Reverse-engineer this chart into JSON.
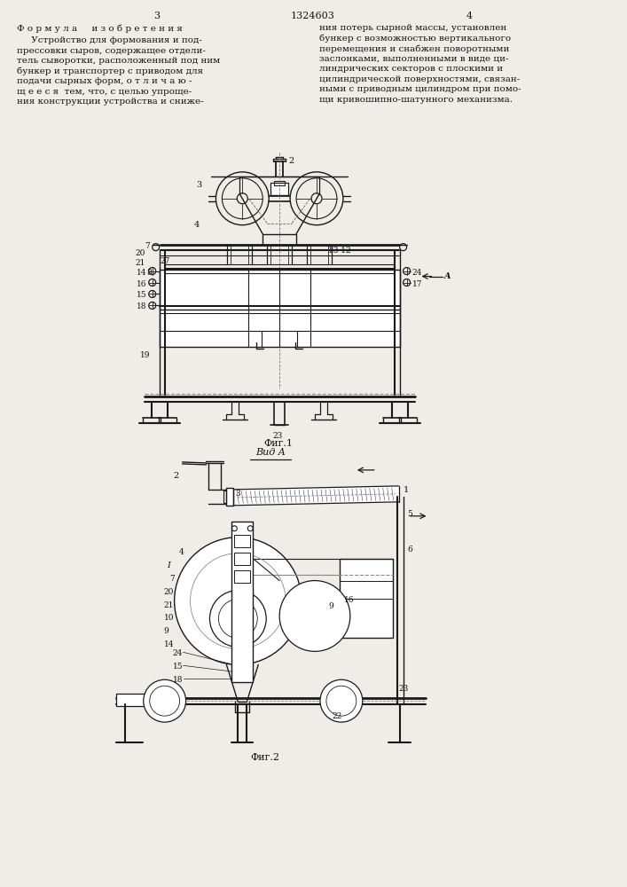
{
  "page_width": 7.07,
  "page_height": 10.0,
  "bg_color": "#f0ede8",
  "line_color": "#1a1a1a",
  "text_color": "#111111",
  "page_number_left": "3",
  "page_number_center": "1324603",
  "page_number_right": "4",
  "left_col_header": "Ф о р м у л а     и з о б р е т е н и я",
  "left_col_text": [
    "     Устройство для формования и под-",
    "прессовки сыров, содержащее отдели-",
    "тель сыворотки, расположенный под ним",
    "бункер и транспортер с приводом для",
    "подачи сырных форм, о т л и ч а ю -",
    "щ е е с я  тем, что, с целью упроще-",
    "ния конструкции устройства и сниже-"
  ],
  "right_col_text": [
    "ния потерь сырной массы, установлен",
    "бункер с возможностью вертикального",
    "перемещения и снабжен поворотными",
    "заслонками, выполненными в виде ци-",
    "линдрических секторов с плоскими и",
    "цилиндрической поверхностями, связан-",
    "ными с приводным цилиндром при помо-",
    "щи кривошипно-шатунного механизма."
  ],
  "fig1_caption": "Фиг.1",
  "fig2_caption": "Фиг.2",
  "vid_a_label": "Вид A",
  "arrow_a_label": "A"
}
